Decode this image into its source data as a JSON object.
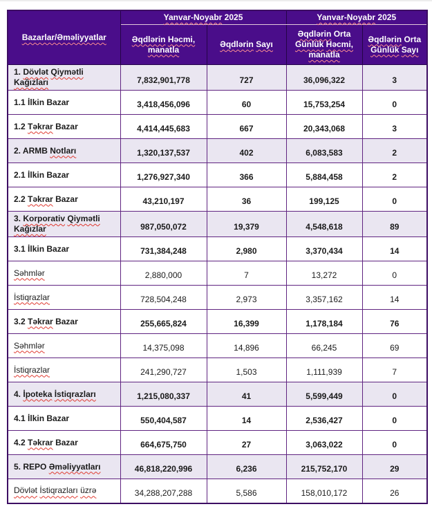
{
  "table": {
    "header": {
      "row_col_header": {
        "text": "Bazarlar/Əməliyyatlar",
        "wavy": [
          "Bazarlar/Əməliyyatlar"
        ]
      },
      "period_group_1": {
        "text": "Yanvar-Noyabr 2025",
        "wavy": [
          "Yanvar-Noyabr"
        ]
      },
      "period_group_2": {
        "text": "Yanvar-Noyabr 2025",
        "wavy": [
          "Yanvar-Noyabr"
        ]
      },
      "columns": [
        {
          "text": "Əqdlərin Həcmi, manatla",
          "wavy": [
            "Əqdlərin",
            "Həcmi,",
            "manatla"
          ]
        },
        {
          "text": "Əqdlərin Sayı",
          "wavy": [
            "Əqdlərin",
            "Sayı"
          ]
        },
        {
          "text": "Əqdlərin Orta Günlük Həcmi, manatla",
          "wavy": [
            "Əqdlərin",
            "Günlük",
            "Həcmi,",
            "manatla"
          ]
        },
        {
          "text": "Əqdlərin Orta Günlük Sayı",
          "wavy": [
            "Əqdlərin",
            "Günlük",
            "Sayı"
          ]
        }
      ]
    },
    "rows": [
      {
        "label": "1. Dövlət Qiymətli Kağızları",
        "wavy": [
          "Dövlət",
          "Qiymətli",
          "Kağızları"
        ],
        "values": [
          "7,832,901,778",
          "727",
          "36,096,322",
          "3"
        ],
        "shaded": true,
        "bold": true
      },
      {
        "label": "1.1 İlkin Bazar",
        "wavy": [],
        "values": [
          "3,418,456,096",
          "60",
          "15,753,254",
          "0"
        ],
        "shaded": false,
        "bold": true
      },
      {
        "label": "1.2 Təkrar Bazar",
        "wavy": [
          "Təkrar"
        ],
        "values": [
          "4,414,445,683",
          "667",
          "20,343,068",
          "3"
        ],
        "shaded": false,
        "bold": true
      },
      {
        "label": "2. ARMB Notları",
        "wavy": [
          "Notları"
        ],
        "values": [
          "1,320,137,537",
          "402",
          "6,083,583",
          "2"
        ],
        "shaded": true,
        "bold": true
      },
      {
        "label": "2.1 İlkin Bazar",
        "wavy": [],
        "values": [
          "1,276,927,340",
          "366",
          "5,884,458",
          "2"
        ],
        "shaded": false,
        "bold": true
      },
      {
        "label": "2.2 Təkrar Bazar",
        "wavy": [
          "Təkrar"
        ],
        "values": [
          "43,210,197",
          "36",
          "199,125",
          "0"
        ],
        "shaded": false,
        "bold": true
      },
      {
        "label": "3. Korporativ Qiymətli Kağızlar",
        "wavy": [
          "Korporativ",
          "Qiymətli",
          "Kağızlar"
        ],
        "values": [
          "987,050,072",
          "19,379",
          "4,548,618",
          "89"
        ],
        "shaded": true,
        "bold": true
      },
      {
        "label": "3.1 İlkin Bazar",
        "wavy": [],
        "values": [
          "731,384,248",
          "2,980",
          "3,370,434",
          "14"
        ],
        "shaded": false,
        "bold": true
      },
      {
        "label": "Səhmlər",
        "wavy": [
          "Səhmlər"
        ],
        "values": [
          "2,880,000",
          "7",
          "13,272",
          "0"
        ],
        "shaded": false,
        "bold": false
      },
      {
        "label": "İstiqrazlar",
        "wavy": [
          "İstiqrazlar"
        ],
        "values": [
          "728,504,248",
          "2,973",
          "3,357,162",
          "14"
        ],
        "shaded": false,
        "bold": false
      },
      {
        "label": "3.2 Təkrar Bazar",
        "wavy": [
          "Təkrar"
        ],
        "values": [
          "255,665,824",
          "16,399",
          "1,178,184",
          "76"
        ],
        "shaded": false,
        "bold": true
      },
      {
        "label": "Səhmlər",
        "wavy": [
          "Səhmlər"
        ],
        "values": [
          "14,375,098",
          "14,896",
          "66,245",
          "69"
        ],
        "shaded": false,
        "bold": false
      },
      {
        "label": "İstiqrazlar",
        "wavy": [
          "İstiqrazlar"
        ],
        "values": [
          "241,290,727",
          "1,503",
          "1,111,939",
          "7"
        ],
        "shaded": false,
        "bold": false
      },
      {
        "label": "4. İpoteka İstiqrazları",
        "wavy": [
          "İpoteka",
          "İstiqrazları"
        ],
        "values": [
          "1,215,080,337",
          "41",
          "5,599,449",
          "0"
        ],
        "shaded": true,
        "bold": true
      },
      {
        "label": "4.1 İlkin Bazar",
        "wavy": [],
        "values": [
          "550,404,587",
          "14",
          "2,536,427",
          "0"
        ],
        "shaded": false,
        "bold": true
      },
      {
        "label": "4.2 Təkrar Bazar",
        "wavy": [
          "Təkrar"
        ],
        "values": [
          "664,675,750",
          "27",
          "3,063,022",
          "0"
        ],
        "shaded": false,
        "bold": true
      },
      {
        "label": "5. REPO Əməliyyatları",
        "wavy": [
          "Əməliyyatları"
        ],
        "values": [
          "46,818,220,996",
          "6,236",
          "215,752,170",
          "29"
        ],
        "shaded": true,
        "bold": true
      },
      {
        "label": "Dövlət İstiqrazları üzrə",
        "wavy": [
          "Dövlət",
          "İstiqrazları",
          "üzrə"
        ],
        "values": [
          "34,288,207,288",
          "5,586",
          "158,010,172",
          "26"
        ],
        "shaded": false,
        "bold": false
      }
    ]
  },
  "colors": {
    "header_bg": "#4a0d8a",
    "header_text": "#ffffff",
    "shaded_row_bg": "#eae6f1",
    "row_bg": "#ffffff",
    "grid_border": "#5f2380",
    "outer_border": "#3d0d63",
    "header_divider": "#e3c9da",
    "squiggle_red": "#e0382e",
    "header_squiggle": "#ff9090",
    "text": "#1a1a1a"
  }
}
